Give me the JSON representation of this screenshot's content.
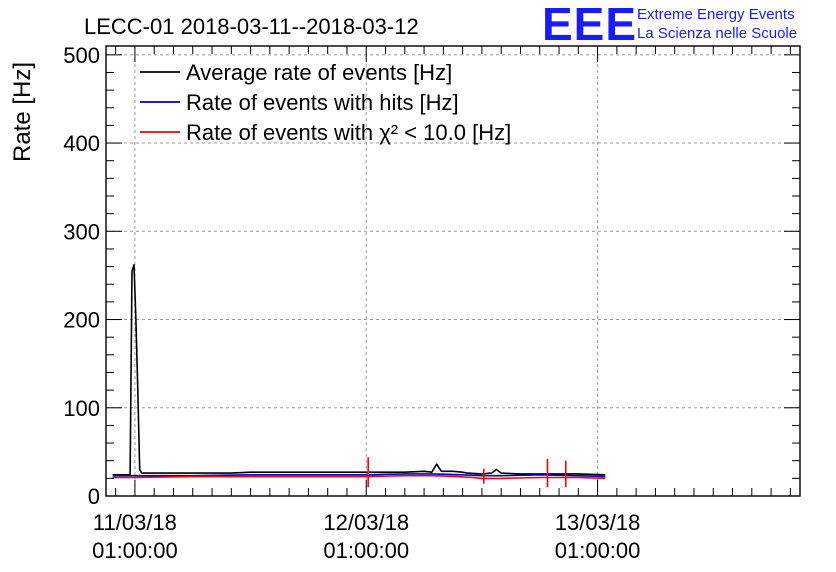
{
  "chart_data": {
    "type": "line",
    "title": "LECC-01 2018-03-11--2018-03-12",
    "ylabel": "Rate [Hz]",
    "xlabel": "",
    "ylim": [
      0,
      510
    ],
    "xlim_hours": [
      -3.0,
      69.0
    ],
    "x_unit": "hours since 11/03/18 00:00:00",
    "x_ticks": [
      {
        "x": 0,
        "date": "11/03/18",
        "time": "01:00:00"
      },
      {
        "x": 24,
        "date": "12/03/18",
        "time": "01:00:00"
      },
      {
        "x": 48,
        "date": "13/03/18",
        "time": "01:00:00"
      }
    ],
    "y_ticks": [
      0,
      100,
      200,
      300,
      400,
      500
    ],
    "grid": true,
    "legend_position": "top-left",
    "series": [
      {
        "name": "Average rate of events [Hz]",
        "color": "#000000",
        "points": [
          [
            -2.3,
            24
          ],
          [
            -0.5,
            24
          ],
          [
            -0.3,
            255
          ],
          [
            -0.1,
            262
          ],
          [
            0.1,
            200
          ],
          [
            0.3,
            120
          ],
          [
            0.5,
            30
          ],
          [
            0.7,
            26
          ],
          [
            6,
            26
          ],
          [
            10,
            26
          ],
          [
            12,
            27
          ],
          [
            18,
            27
          ],
          [
            24,
            27
          ],
          [
            26,
            27
          ],
          [
            28,
            27
          ],
          [
            30,
            28
          ],
          [
            30.8,
            27
          ],
          [
            31.3,
            36
          ],
          [
            31.8,
            28
          ],
          [
            33,
            28
          ],
          [
            34,
            27
          ],
          [
            34.5,
            26
          ],
          [
            36,
            25
          ],
          [
            37,
            26
          ],
          [
            37.5,
            30
          ],
          [
            38,
            26
          ],
          [
            40,
            25
          ],
          [
            44,
            25
          ],
          [
            46,
            25
          ],
          [
            48.8,
            24
          ]
        ]
      },
      {
        "name": "Rate of events with hits [Hz]",
        "color": "#0000cc",
        "points": [
          [
            -2.3,
            23
          ],
          [
            0,
            23
          ],
          [
            6,
            23
          ],
          [
            12,
            24
          ],
          [
            18,
            24
          ],
          [
            24,
            24
          ],
          [
            28,
            25
          ],
          [
            31,
            25
          ],
          [
            34,
            24
          ],
          [
            36,
            23
          ],
          [
            38,
            23
          ],
          [
            42,
            24
          ],
          [
            46,
            23
          ],
          [
            48.8,
            22
          ]
        ]
      },
      {
        "name": "Rate of events with χ² < 10.0 [Hz]",
        "color": "#ff0000",
        "points": [
          [
            -2.3,
            21
          ],
          [
            0,
            21
          ],
          [
            6,
            22
          ],
          [
            12,
            22
          ],
          [
            18,
            22
          ],
          [
            24,
            22
          ],
          [
            28,
            23
          ],
          [
            31,
            23
          ],
          [
            33.5,
            22
          ],
          [
            35,
            21
          ],
          [
            36,
            20
          ],
          [
            38,
            20
          ],
          [
            42,
            21
          ],
          [
            46,
            21
          ],
          [
            48.8,
            20
          ]
        ]
      }
    ],
    "error_spikes": [
      {
        "x": 24.2,
        "low": 10,
        "high": 44
      },
      {
        "x": 36.2,
        "low": 14,
        "high": 31
      },
      {
        "x": 42.8,
        "low": 10,
        "high": 42
      },
      {
        "x": 44.7,
        "low": 10,
        "high": 40
      }
    ]
  },
  "logo": {
    "mark": "EEE",
    "line1": "Extreme Energy Events",
    "line2": "La Scienza nelle Scuole"
  }
}
